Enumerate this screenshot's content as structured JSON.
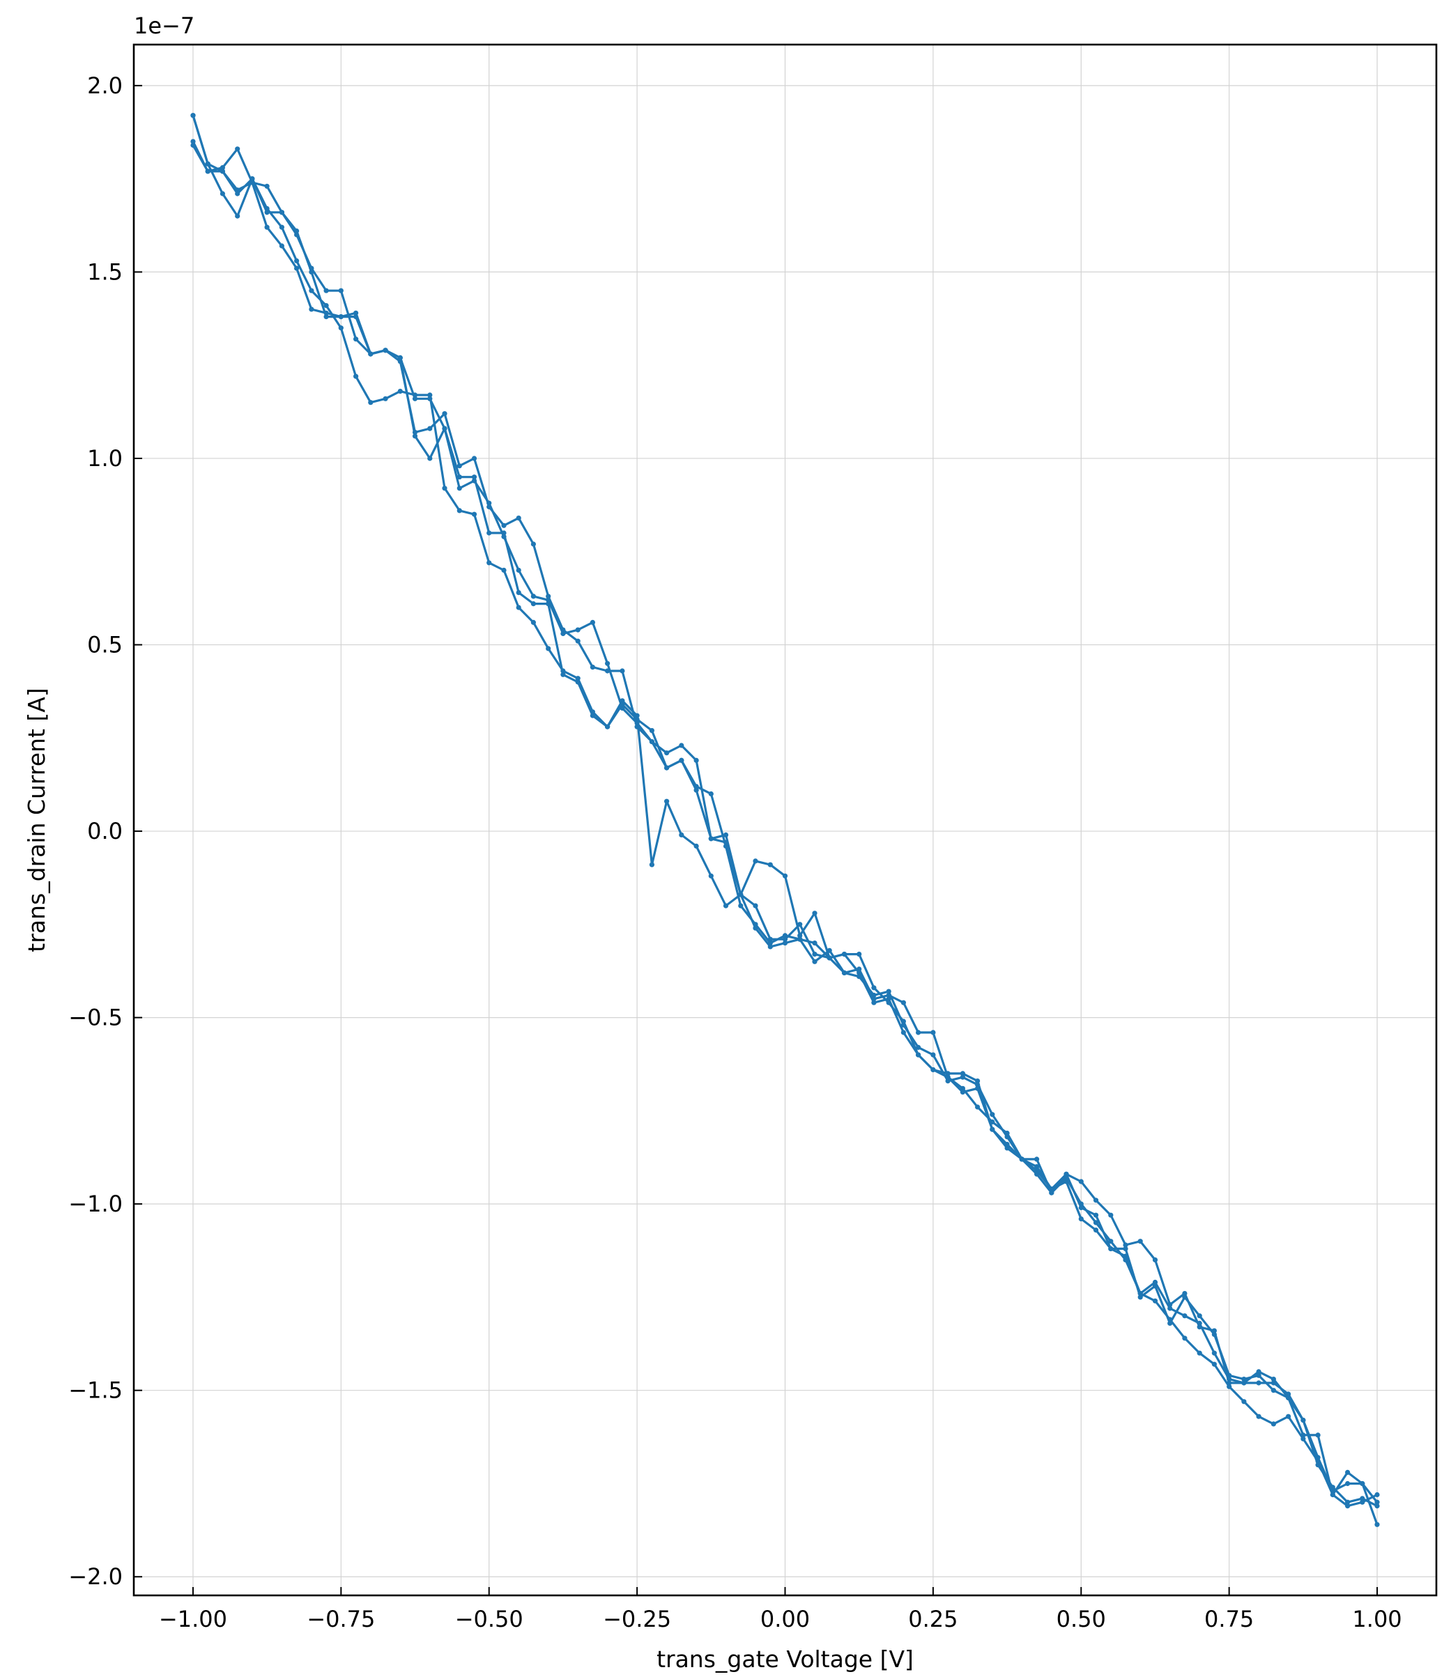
{
  "chart_data": {
    "type": "line",
    "title": "",
    "xlabel": "trans_gate Voltage [V]",
    "ylabel": "trans_drain Current [A]",
    "y_offset_label": "1e−7",
    "xlim": [
      -1.1,
      1.1
    ],
    "ylim": [
      -2.05,
      2.11
    ],
    "grid": true,
    "legend": "none",
    "x_ticks": [
      {
        "value": -1.0,
        "label": "−1.00"
      },
      {
        "value": -0.75,
        "label": "−0.75"
      },
      {
        "value": -0.5,
        "label": "−0.50"
      },
      {
        "value": -0.25,
        "label": "−0.25"
      },
      {
        "value": 0.0,
        "label": "0.00"
      },
      {
        "value": 0.25,
        "label": "0.25"
      },
      {
        "value": 0.5,
        "label": "0.50"
      },
      {
        "value": 0.75,
        "label": "0.75"
      },
      {
        "value": 1.0,
        "label": "1.00"
      }
    ],
    "y_ticks": [
      {
        "value": 2.0,
        "label": "2.0"
      },
      {
        "value": 1.5,
        "label": "1.5"
      },
      {
        "value": 1.0,
        "label": "1.0"
      },
      {
        "value": 0.5,
        "label": "0.5"
      },
      {
        "value": 0.0,
        "label": "0.0"
      },
      {
        "value": -0.5,
        "label": "−0.5"
      },
      {
        "value": -1.0,
        "label": "−1.0"
      },
      {
        "value": -1.5,
        "label": "−1.5"
      },
      {
        "value": -2.0,
        "label": "−2.0"
      }
    ],
    "colors": {
      "series": "#1f77b4",
      "grid": "#d3d3d3",
      "axes": "#000000"
    },
    "series": [
      {
        "x": [
          -1.0,
          -0.975,
          -0.95,
          -0.925,
          -0.9,
          -0.875,
          -0.85,
          -0.825,
          -0.8,
          -0.775,
          -0.75,
          -0.725,
          -0.7,
          -0.675,
          -0.65,
          -0.625,
          -0.6,
          -0.575,
          -0.55,
          -0.525,
          -0.5,
          -0.475,
          -0.45,
          -0.425,
          -0.4,
          -0.375,
          -0.35,
          -0.325,
          -0.3,
          -0.275,
          -0.25,
          -0.225,
          -0.2,
          -0.175,
          -0.15,
          -0.125,
          -0.1,
          -0.075,
          -0.05,
          -0.025,
          0.0,
          0.025,
          0.05,
          0.075,
          0.1,
          0.125,
          0.15,
          0.175,
          0.2,
          0.225,
          0.25,
          0.275,
          0.3,
          0.325,
          0.35,
          0.375,
          0.4,
          0.425,
          0.45,
          0.475,
          0.5,
          0.525,
          0.55,
          0.575,
          0.6,
          0.625,
          0.65,
          0.675,
          0.7,
          0.725,
          0.75,
          0.775,
          0.8,
          0.825,
          0.85,
          0.875,
          0.9,
          0.925,
          0.95,
          0.975,
          1.0
        ],
        "y": [
          1.92,
          1.79,
          1.71,
          1.65,
          1.75,
          1.67,
          1.62,
          1.53,
          1.45,
          1.41,
          1.35,
          1.22,
          1.15,
          1.16,
          1.18,
          1.17,
          1.17,
          0.92,
          0.86,
          0.85,
          0.72,
          0.7,
          0.6,
          0.56,
          0.49,
          0.43,
          0.41,
          0.32,
          0.28,
          0.35,
          0.31,
          -0.09,
          0.08,
          -0.01,
          -0.04,
          -0.12,
          -0.2,
          -0.17,
          -0.08,
          -0.09,
          -0.12,
          -0.28,
          -0.22,
          -0.34,
          -0.33,
          -0.33,
          -0.42,
          -0.46,
          -0.51,
          -0.6,
          -0.64,
          -0.65,
          -0.65,
          -0.67,
          -0.8,
          -0.85,
          -0.88,
          -0.88,
          -0.97,
          -0.92,
          -0.94,
          -0.99,
          -1.03,
          -1.11,
          -1.1,
          -1.15,
          -1.27,
          -1.24,
          -1.33,
          -1.34,
          -1.48,
          -1.48,
          -1.45,
          -1.47,
          -1.52,
          -1.58,
          -1.68,
          -1.77,
          -1.75,
          -1.75,
          -1.86
        ]
      },
      {
        "x": [
          1.0,
          0.975,
          0.95,
          0.925,
          0.9,
          0.875,
          0.85,
          0.825,
          0.8,
          0.775,
          0.75,
          0.725,
          0.7,
          0.675,
          0.65,
          0.625,
          0.6,
          0.575,
          0.55,
          0.525,
          0.5,
          0.475,
          0.45,
          0.425,
          0.4,
          0.375,
          0.35,
          0.325,
          0.3,
          0.275,
          0.25,
          0.225,
          0.2,
          0.175,
          0.15,
          0.125,
          0.1,
          0.075,
          0.05,
          0.025,
          0.0,
          -0.025,
          -0.05,
          -0.075,
          -0.1,
          -0.125,
          -0.15,
          -0.175,
          -0.2,
          -0.225,
          -0.25,
          -0.275,
          -0.3,
          -0.325,
          -0.35,
          -0.375,
          -0.4,
          -0.425,
          -0.45,
          -0.475,
          -0.5,
          -0.525,
          -0.55,
          -0.575,
          -0.6,
          -0.625,
          -0.65,
          -0.675,
          -0.7,
          -0.725,
          -0.75,
          -0.775,
          -0.8,
          -0.825,
          -0.85,
          -0.875,
          -0.9,
          -0.925,
          -0.95,
          -0.975,
          -1.0
        ],
        "y": [
          -1.78,
          -1.8,
          -1.81,
          -1.78,
          -1.62,
          -1.62,
          -1.52,
          -1.5,
          -1.46,
          -1.47,
          -1.46,
          -1.35,
          -1.3,
          -1.25,
          -1.32,
          -1.22,
          -1.25,
          -1.12,
          -1.12,
          -1.07,
          -1.04,
          -0.94,
          -0.96,
          -0.9,
          -0.88,
          -0.81,
          -0.78,
          -0.74,
          -0.69,
          -0.66,
          -0.54,
          -0.54,
          -0.46,
          -0.44,
          -0.45,
          -0.37,
          -0.38,
          -0.32,
          -0.35,
          -0.29,
          -0.28,
          -0.3,
          -0.25,
          -0.2,
          -0.04,
          0.1,
          0.12,
          0.19,
          0.17,
          0.24,
          0.29,
          0.33,
          0.45,
          0.56,
          0.54,
          0.53,
          0.62,
          0.63,
          0.7,
          0.79,
          0.88,
          0.94,
          0.92,
          1.08,
          1.0,
          1.06,
          1.27,
          1.29,
          1.28,
          1.39,
          1.38,
          1.38,
          1.5,
          1.61,
          1.66,
          1.66,
          1.75,
          1.71,
          1.77,
          1.77,
          1.84
        ]
      },
      {
        "x": [
          -1.0,
          -0.975,
          -0.95,
          -0.925,
          -0.9,
          -0.875,
          -0.85,
          -0.825,
          -0.8,
          -0.775,
          -0.75,
          -0.725,
          -0.7,
          -0.675,
          -0.65,
          -0.625,
          -0.6,
          -0.575,
          -0.55,
          -0.525,
          -0.5,
          -0.475,
          -0.45,
          -0.425,
          -0.4,
          -0.375,
          -0.35,
          -0.325,
          -0.3,
          -0.275,
          -0.25,
          -0.225,
          -0.2,
          -0.175,
          -0.15,
          -0.125,
          -0.1,
          -0.075,
          -0.05,
          -0.025,
          0.0,
          0.025,
          0.05,
          0.075,
          0.1,
          0.125,
          0.15,
          0.175,
          0.2,
          0.225,
          0.25,
          0.275,
          0.3,
          0.325,
          0.35,
          0.375,
          0.4,
          0.425,
          0.45,
          0.475,
          0.5,
          0.525,
          0.55,
          0.575,
          0.6,
          0.625,
          0.65,
          0.675,
          0.7,
          0.725,
          0.75,
          0.775,
          0.8,
          0.825,
          0.85,
          0.875,
          0.9,
          0.925,
          0.95,
          0.975,
          1.0
        ],
        "y": [
          1.85,
          1.77,
          1.78,
          1.83,
          1.74,
          1.73,
          1.66,
          1.6,
          1.51,
          1.45,
          1.45,
          1.32,
          1.28,
          1.29,
          1.26,
          1.07,
          1.08,
          1.12,
          0.98,
          1.0,
          0.87,
          0.82,
          0.84,
          0.77,
          0.63,
          0.54,
          0.51,
          0.44,
          0.43,
          0.43,
          0.28,
          0.24,
          0.21,
          0.23,
          0.19,
          -0.02,
          -0.01,
          -0.17,
          -0.26,
          -0.31,
          -0.3,
          -0.29,
          -0.3,
          -0.34,
          -0.38,
          -0.39,
          -0.44,
          -0.43,
          -0.52,
          -0.58,
          -0.6,
          -0.67,
          -0.66,
          -0.68,
          -0.76,
          -0.82,
          -0.88,
          -0.91,
          -0.96,
          -0.92,
          -1.01,
          -1.03,
          -1.12,
          -1.14,
          -1.24,
          -1.26,
          -1.31,
          -1.36,
          -1.4,
          -1.43,
          -1.49,
          -1.53,
          -1.57,
          -1.59,
          -1.57,
          -1.63,
          -1.69,
          -1.78,
          -1.72,
          -1.75,
          -1.8
        ]
      },
      {
        "x": [
          1.0,
          0.975,
          0.95,
          0.925,
          0.9,
          0.875,
          0.85,
          0.825,
          0.8,
          0.775,
          0.75,
          0.725,
          0.7,
          0.675,
          0.65,
          0.625,
          0.6,
          0.575,
          0.55,
          0.525,
          0.5,
          0.475,
          0.45,
          0.425,
          0.4,
          0.375,
          0.35,
          0.325,
          0.3,
          0.275,
          0.25,
          0.225,
          0.2,
          0.175,
          0.15,
          0.125,
          0.1,
          0.075,
          0.05,
          0.025,
          0.0,
          -0.025,
          -0.05,
          -0.075,
          -0.1,
          -0.125,
          -0.15,
          -0.175,
          -0.2,
          -0.225,
          -0.25,
          -0.275,
          -0.3,
          -0.325,
          -0.35,
          -0.375,
          -0.4,
          -0.425,
          -0.45,
          -0.475,
          -0.5,
          -0.525,
          -0.55,
          -0.575,
          -0.6,
          -0.625,
          -0.65,
          -0.675,
          -0.7,
          -0.725,
          -0.75,
          -0.775,
          -0.8,
          -0.825,
          -0.85,
          -0.875,
          -0.9,
          -0.925,
          -0.95,
          -0.975,
          -1.0
        ],
        "y": [
          -1.81,
          -1.79,
          -1.8,
          -1.76,
          -1.7,
          -1.58,
          -1.51,
          -1.48,
          -1.48,
          -1.48,
          -1.47,
          -1.4,
          -1.32,
          -1.3,
          -1.28,
          -1.21,
          -1.24,
          -1.15,
          -1.1,
          -1.05,
          -1.0,
          -0.93,
          -0.97,
          -0.92,
          -0.88,
          -0.84,
          -0.8,
          -0.69,
          -0.7,
          -0.66,
          -0.64,
          -0.6,
          -0.54,
          -0.45,
          -0.46,
          -0.38,
          -0.33,
          -0.34,
          -0.33,
          -0.25,
          -0.29,
          -0.29,
          -0.2,
          -0.17,
          -0.03,
          -0.02,
          0.11,
          0.19,
          0.17,
          0.27,
          0.3,
          0.34,
          0.28,
          0.31,
          0.4,
          0.42,
          0.61,
          0.61,
          0.64,
          0.8,
          0.8,
          0.95,
          0.95,
          1.08,
          1.16,
          1.16,
          1.27,
          1.29,
          1.28,
          1.38,
          1.38,
          1.39,
          1.4,
          1.51,
          1.57,
          1.62,
          1.74,
          1.72,
          1.77,
          1.79,
          1.92
        ]
      }
    ]
  }
}
